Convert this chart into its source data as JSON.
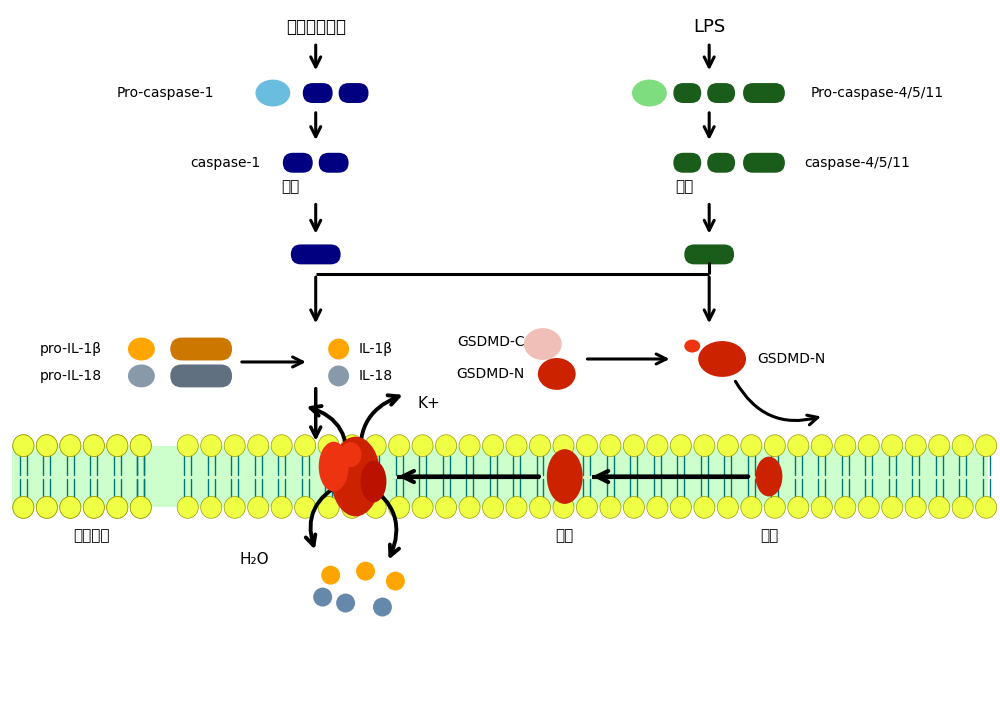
{
  "bg_color": "#ffffff",
  "left_title": "炎性小体活化",
  "right_title": "LPS",
  "left_procaspase_label": "Pro-caspase-1",
  "right_procaspase_label": "Pro-caspase-4/5/11",
  "left_caspase_label": "caspase-1",
  "right_caspase_label": "caspase-4/5/11",
  "cleave_label": "裂解",
  "pro_il1b_label": "pro-IL-1β",
  "pro_il18_label": "pro-IL-18",
  "il1b_label": "IL-1β",
  "il18_label": "IL-18",
  "gsdmd_c_label": "GSDMD-C",
  "gsdmd_n_label1": "GSDMD-N",
  "gsdmd_n_label2": "GSDMD-N",
  "lysis_label": "溶解破裂",
  "pore_label": "成孔",
  "assembly_label": "组装",
  "kplus_label": "K+",
  "h2o_label": "H₂O",
  "dark_blue": "#000080",
  "light_blue_oval": "#6BBDE0",
  "dark_green": "#1a5c1a",
  "light_green_oval": "#7EDD7E",
  "orange_bright": "#FFA500",
  "orange_dark": "#CC7700",
  "slate_color": "#607080",
  "slate_light": "#8899AA",
  "pink_color": "#F0C0B8",
  "red_color": "#CC2200",
  "red_bright": "#EE3311",
  "membrane_yellow": "#EEFF44",
  "membrane_green_bg": "#CCFFCC",
  "membrane_tail": "#44AA66",
  "membrane_tail_dark": "#007777"
}
